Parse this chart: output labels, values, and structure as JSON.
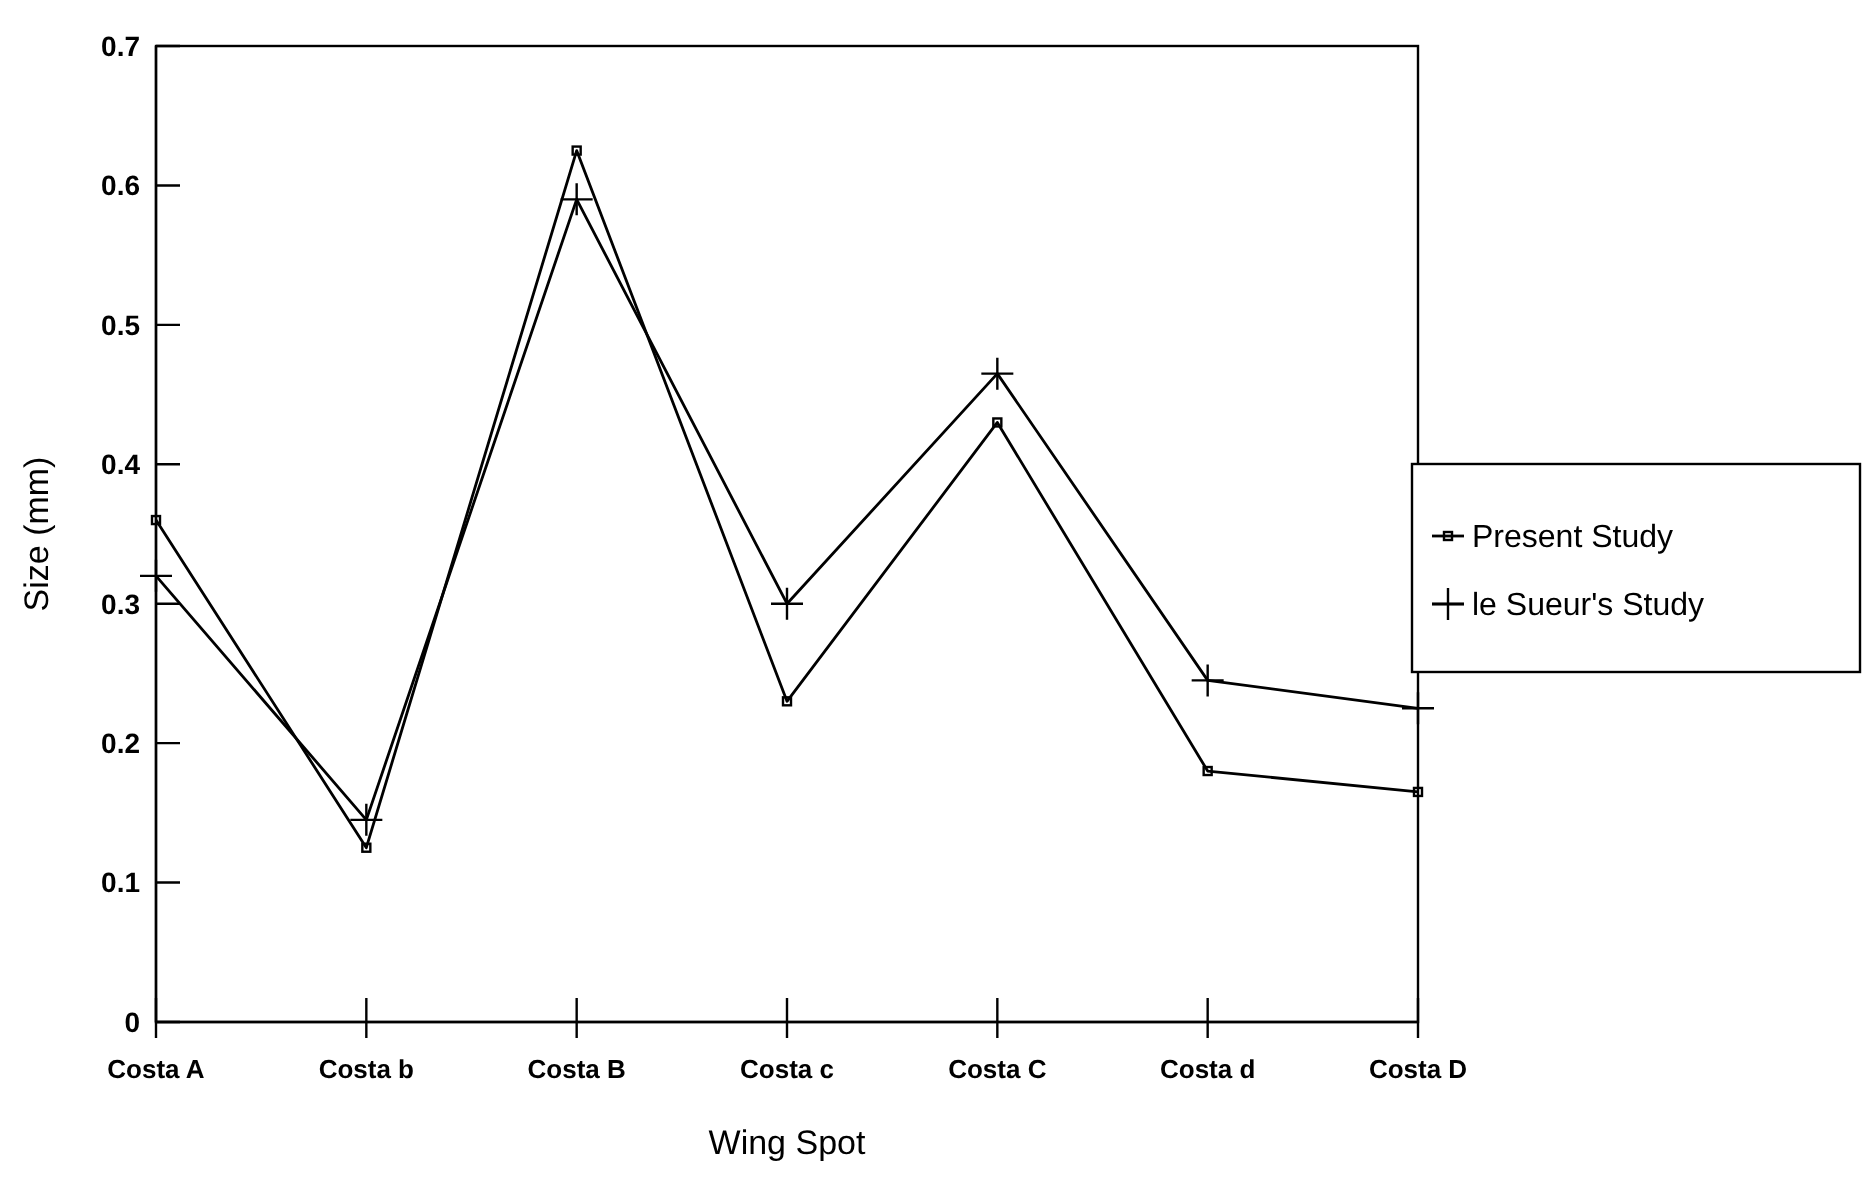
{
  "chart_data": {
    "type": "line",
    "xlabel": "Wing Spot",
    "ylabel": "Size (mm)",
    "categories": [
      "Costa A",
      "Costa b",
      "Costa B",
      "Costa c",
      "Costa C",
      "Costa d",
      "Costa D"
    ],
    "series": [
      {
        "name": "Present Study",
        "color": "#000000",
        "marker": "square",
        "values": [
          0.36,
          0.125,
          0.625,
          0.23,
          0.43,
          0.18,
          0.165
        ]
      },
      {
        "name": "le Sueur's Study",
        "color": "#000000",
        "marker": "cross",
        "values": [
          0.32,
          0.145,
          0.59,
          0.3,
          0.465,
          0.245,
          0.225
        ]
      }
    ],
    "ylim": [
      0,
      0.7
    ],
    "yticks": [
      {
        "value": 0,
        "label": "0"
      },
      0.1,
      0.2,
      0.3,
      0.4,
      0.5,
      0.6,
      0.7
    ],
    "grid": false,
    "legend": "right",
    "line_style": "solid"
  }
}
